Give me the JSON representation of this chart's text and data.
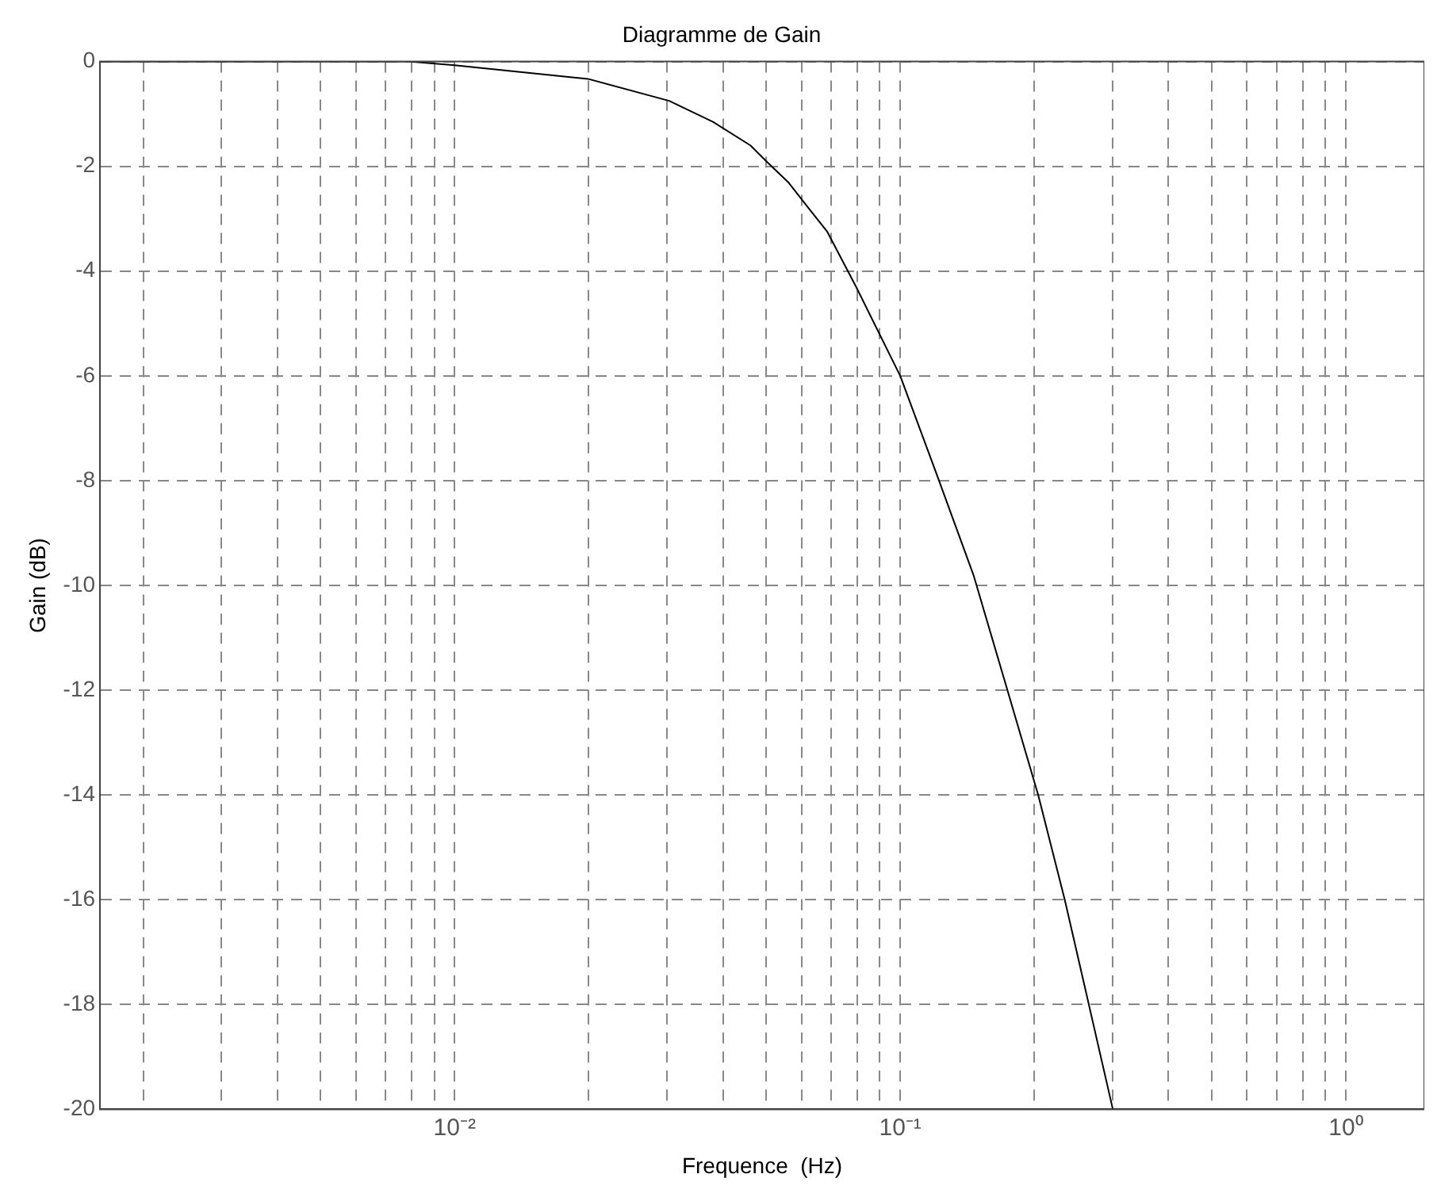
{
  "chart_data": {
    "type": "line",
    "title": "Diagramme de Gain",
    "xlabel": "Frequence  (Hz)",
    "ylabel": "Gain (dB)",
    "log": "x",
    "grid": true,
    "marker": "none",
    "line_style": "solid",
    "xlim": [
      0.0016,
      1.5
    ],
    "ylim": [
      -20,
      0
    ],
    "xticks": [
      {
        "value": 0.002,
        "label": null
      },
      {
        "value": 0.003,
        "label": null
      },
      {
        "value": 0.004,
        "label": null
      },
      {
        "value": 0.005,
        "label": null
      },
      {
        "value": 0.006,
        "label": null
      },
      {
        "value": 0.007,
        "label": null
      },
      {
        "value": 0.008,
        "label": null
      },
      {
        "value": 0.009,
        "label": null
      },
      {
        "value": 0.01,
        "label": "10⁻²"
      },
      {
        "value": 0.02,
        "label": null
      },
      {
        "value": 0.03,
        "label": null
      },
      {
        "value": 0.04,
        "label": null
      },
      {
        "value": 0.05,
        "label": null
      },
      {
        "value": 0.06,
        "label": null
      },
      {
        "value": 0.07,
        "label": null
      },
      {
        "value": 0.08,
        "label": null
      },
      {
        "value": 0.09,
        "label": null
      },
      {
        "value": 0.1,
        "label": "10⁻¹"
      },
      {
        "value": 0.2,
        "label": null
      },
      {
        "value": 0.3,
        "label": null
      },
      {
        "value": 0.4,
        "label": null
      },
      {
        "value": 0.5,
        "label": null
      },
      {
        "value": 0.6,
        "label": null
      },
      {
        "value": 0.7,
        "label": null
      },
      {
        "value": 0.8,
        "label": null
      },
      {
        "value": 0.9,
        "label": null
      },
      {
        "value": 1,
        "label": "10⁰"
      }
    ],
    "yticks": [
      -20,
      -18,
      -16,
      -14,
      -12,
      -10,
      -8,
      -6,
      -4,
      -2,
      0
    ],
    "series": [
      {
        "color": "#000000",
        "x": [
          0.0016,
          0.004,
          0.0079,
          0.01,
          0.0173,
          0.0199,
          0.0303,
          0.038,
          0.0461,
          0.05,
          0.056,
          0.0686,
          0.0796,
          0.1,
          0.121,
          0.146,
          0.174,
          0.204,
          0.234,
          0.265,
          0.3
        ],
        "values": [
          0,
          0,
          0,
          -0.07,
          -0.28,
          -0.33,
          -0.75,
          -1.15,
          -1.6,
          -1.9,
          -2.3,
          -3.25,
          -4.3,
          -6,
          -7.9,
          -9.8,
          -12,
          -14,
          -16,
          -18,
          -20
        ]
      }
    ]
  }
}
